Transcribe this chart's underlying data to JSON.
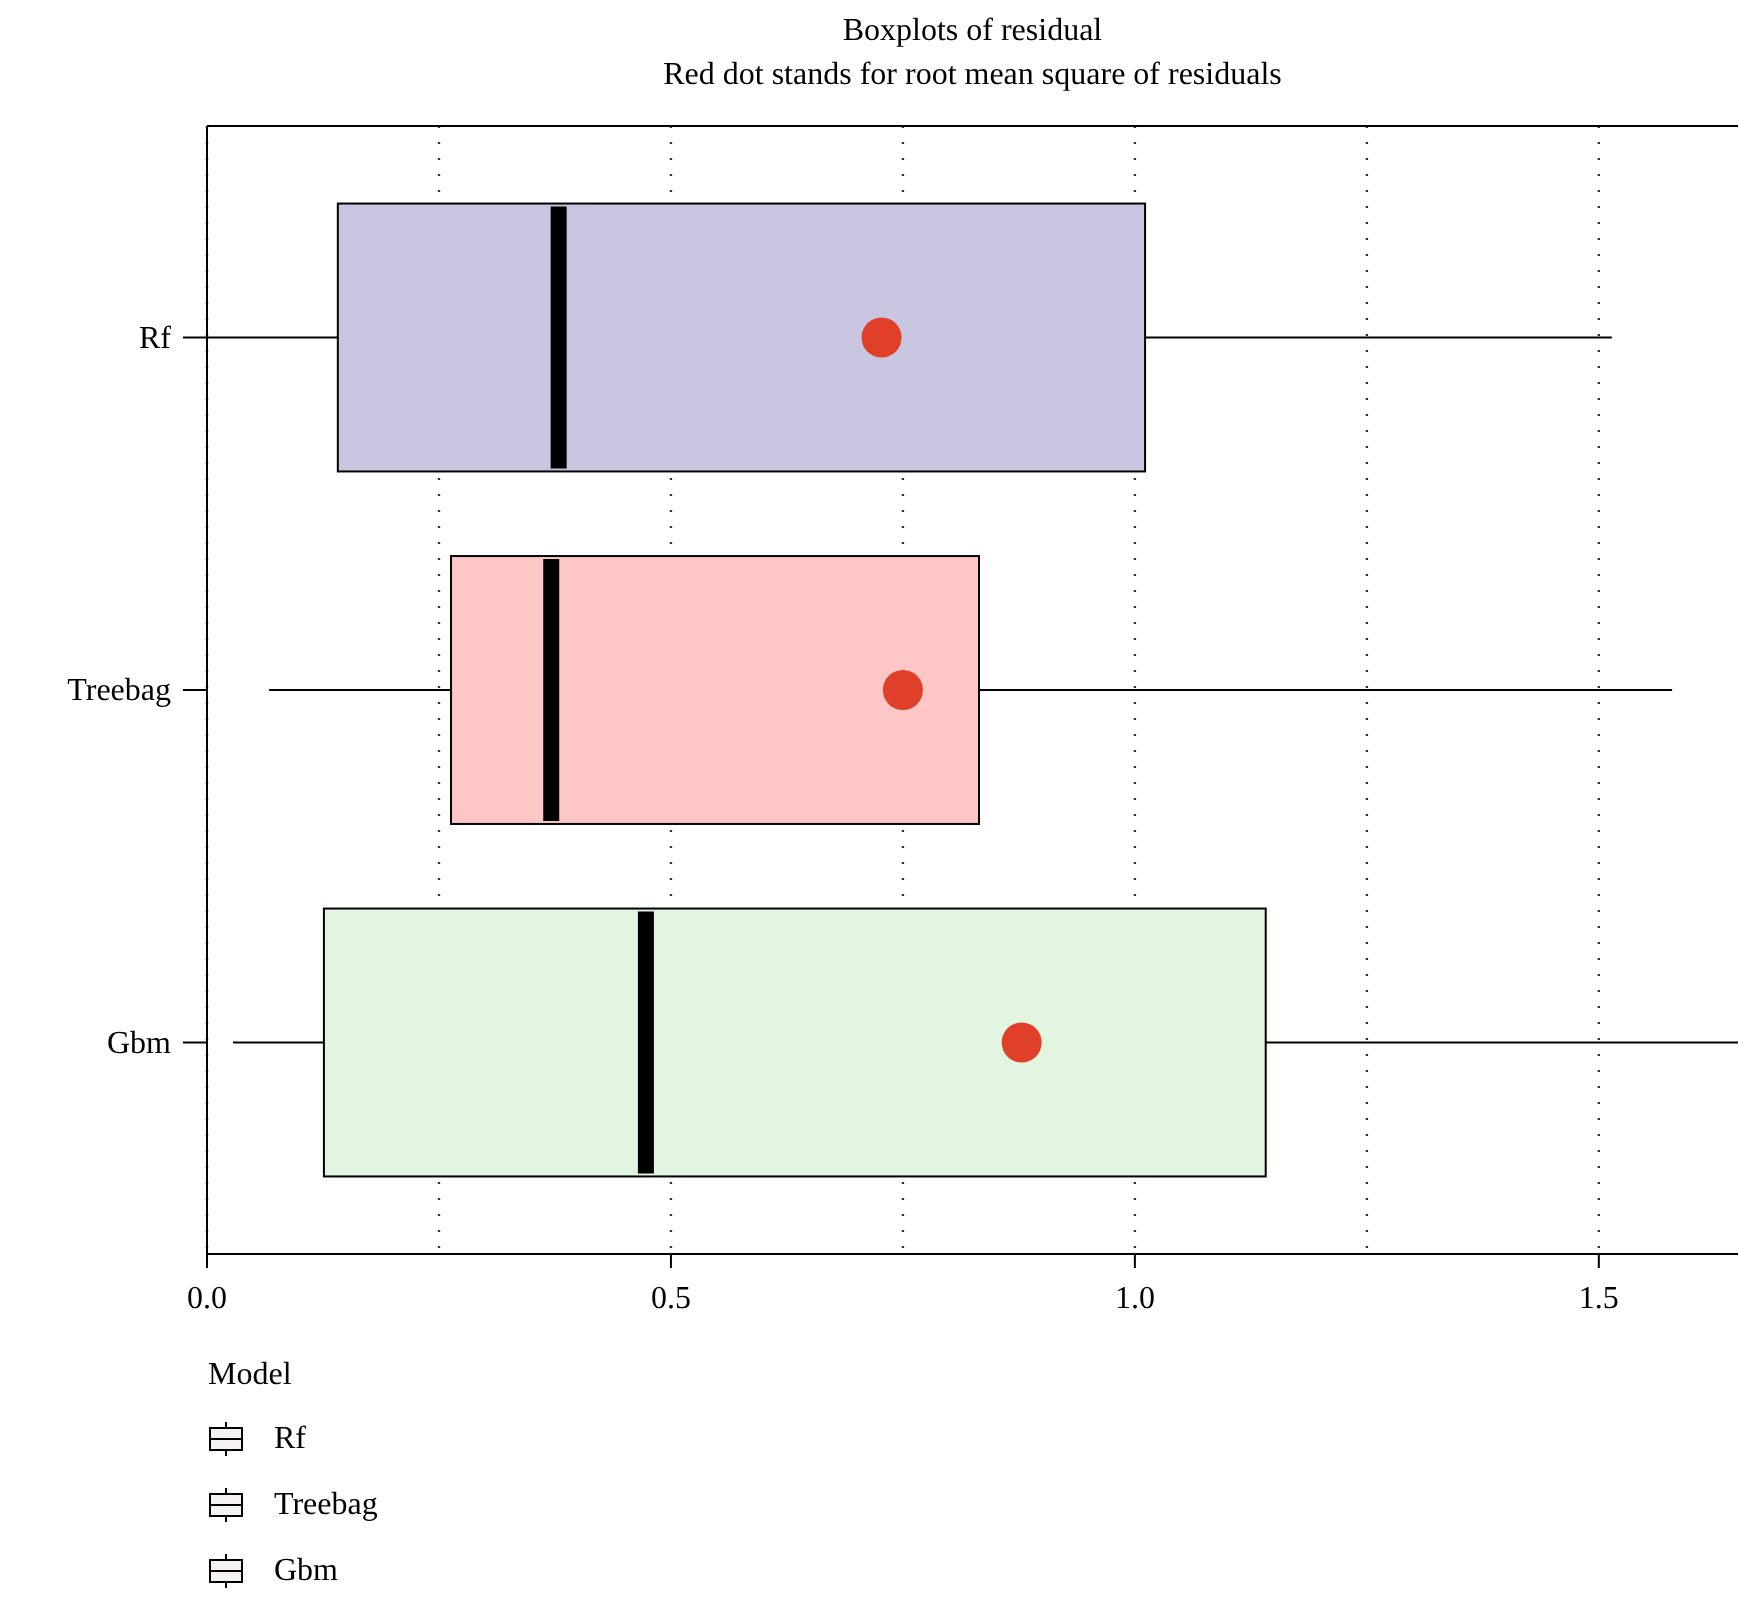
{
  "chart_data": {
    "type": "box",
    "title": "Boxplots of residual",
    "subtitle": "Red dot stands for root mean square of residuals",
    "orientation": "horizontal",
    "categories": [
      "Rf",
      "Treebag",
      "Gbm"
    ],
    "boxes": [
      {
        "low": 0.0,
        "q1": 0.141,
        "median": 0.379,
        "q3": 1.011,
        "high": 1.514
      },
      {
        "low": 0.067,
        "q1": 0.263,
        "median": 0.371,
        "q3": 0.832,
        "high": 1.579
      },
      {
        "low": 0.028,
        "q1": 0.126,
        "median": 0.473,
        "q3": 1.141,
        "high": 1.65
      }
    ],
    "colors": [
      "#c8c6e0",
      "#ffc6c6",
      "#e1f5e1"
    ],
    "series": [
      {
        "type": "scatter",
        "x": [
          "Rf",
          "Treebag",
          "Gbm"
        ],
        "values": [
          0.727,
          0.75,
          0.878
        ],
        "color": "#e0402a"
      }
    ],
    "marker": "circle",
    "xlim": [
      0,
      1.65
    ],
    "xticks": [
      {
        "value": 0,
        "label": "0.0"
      },
      {
        "value": 0.25,
        "label": null
      },
      {
        "value": 0.5,
        "label": "0.5"
      },
      {
        "value": 0.75,
        "label": null
      },
      {
        "value": 1,
        "label": "1.0"
      },
      {
        "value": 1.25,
        "label": null
      },
      {
        "value": 1.5,
        "label": "1.5"
      }
    ],
    "grid": "x",
    "legend_title": "Model"
  }
}
